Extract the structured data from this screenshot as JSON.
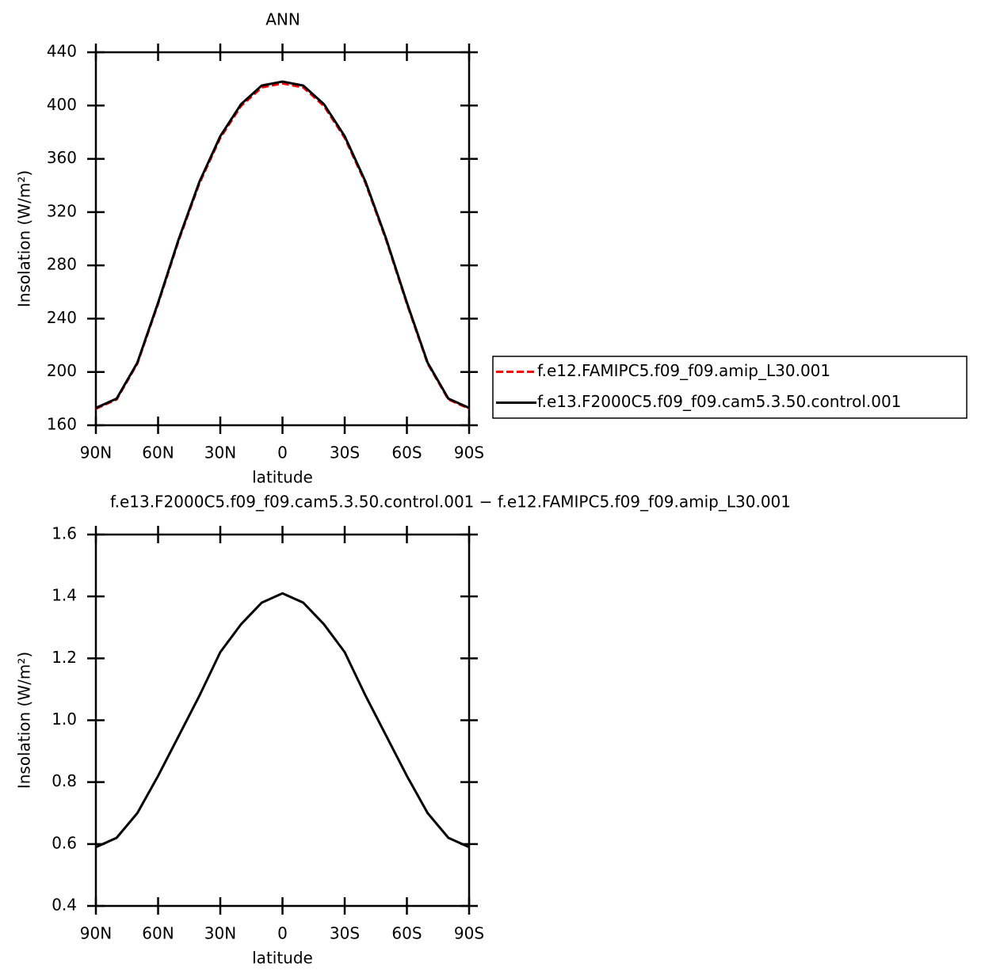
{
  "chart_data": [
    {
      "type": "line",
      "title": "ANN",
      "xlabel": "latitude",
      "ylabel": "Insolation (W/m²)",
      "x": [
        90,
        80,
        70,
        60,
        50,
        40,
        30,
        20,
        10,
        0,
        -10,
        -20,
        -30,
        -40,
        -50,
        -60,
        -70,
        -80,
        -90
      ],
      "series": [
        {
          "name": "f.e12.FAMIPC5.f09_f09.amip_L30.001",
          "color": "#ff0000",
          "dash": true,
          "values": [
            172.41,
            179.38,
            206.3,
            251.18,
            299.05,
            341.92,
            375.78,
            399.69,
            413.62,
            416.59,
            413.62,
            399.69,
            375.78,
            341.92,
            299.05,
            251.18,
            206.3,
            179.38,
            172.41
          ]
        },
        {
          "name": "f.e13.F2000C5.f09_f09.cam5.3.50.control.001",
          "color": "#000000",
          "dash": false,
          "values": [
            173,
            180,
            207,
            252,
            300,
            343,
            377,
            401,
            415,
            418,
            415,
            401,
            377,
            343,
            300,
            252,
            207,
            180,
            173
          ]
        }
      ],
      "xlim": [
        90,
        -90
      ],
      "xticks": [
        {
          "value": 90,
          "label": "90N"
        },
        {
          "value": 60,
          "label": "60N"
        },
        {
          "value": 30,
          "label": "30N"
        },
        0,
        {
          "value": -30,
          "label": "30S"
        },
        {
          "value": -60,
          "label": "60S"
        },
        {
          "value": -90,
          "label": "90S"
        }
      ],
      "ylim": [
        160,
        440
      ],
      "yticks": [
        160,
        200,
        240,
        280,
        320,
        360,
        400,
        440
      ],
      "legend": "right"
    },
    {
      "type": "line",
      "title": "f.e13.F2000C5.f09_f09.cam5.3.50.control.001 − f.e12.FAMIPC5.f09_f09.amip_L30.001",
      "xlabel": "latitude",
      "ylabel": "Insolation (W/m²)",
      "x": [
        90,
        80,
        70,
        60,
        50,
        40,
        30,
        20,
        10,
        0,
        -10,
        -20,
        -30,
        -40,
        -50,
        -60,
        -70,
        -80,
        -90
      ],
      "series": [
        {
          "color": "#000000",
          "dash": false,
          "values": [
            0.59,
            0.62,
            0.7,
            0.82,
            0.95,
            1.08,
            1.22,
            1.31,
            1.38,
            1.41,
            1.38,
            1.31,
            1.22,
            1.08,
            0.95,
            0.82,
            0.7,
            0.62,
            0.59
          ]
        }
      ],
      "xlim": [
        90,
        -90
      ],
      "xticks": [
        {
          "value": 90,
          "label": "90N"
        },
        {
          "value": 60,
          "label": "60N"
        },
        {
          "value": 30,
          "label": "30N"
        },
        0,
        {
          "value": -30,
          "label": "30S"
        },
        {
          "value": -60,
          "label": "60S"
        },
        {
          "value": -90,
          "label": "90S"
        }
      ],
      "ylim": [
        0.4,
        1.6
      ],
      "yticks": [
        {
          "value": 0.4,
          "label": "0.4"
        },
        {
          "value": 0.6,
          "label": "0.6"
        },
        {
          "value": 0.8,
          "label": "0.8"
        },
        {
          "value": 1.0,
          "label": "1.0"
        },
        {
          "value": 1.2,
          "label": "1.2"
        },
        {
          "value": 1.4,
          "label": "1.4"
        },
        {
          "value": 1.6,
          "label": "1.6"
        }
      ]
    }
  ]
}
